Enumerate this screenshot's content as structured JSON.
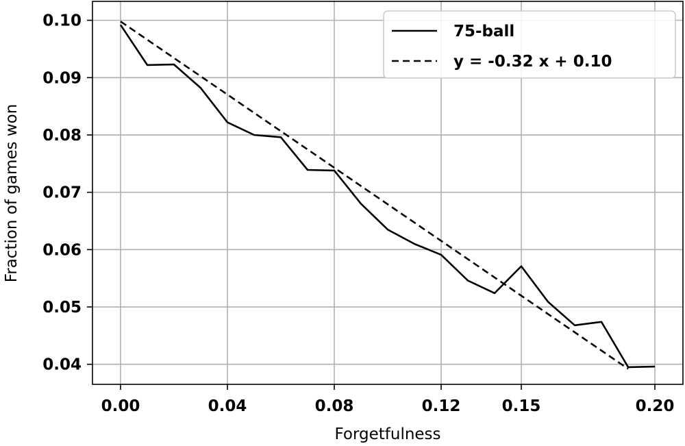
{
  "chart_data": {
    "type": "line",
    "title": "",
    "xlabel": "Forgetfulness",
    "ylabel": "Fraction of games won",
    "xlim": [
      -0.0105,
      0.2105
    ],
    "ylim": [
      0.0365,
      0.1033
    ],
    "grid": true,
    "legend_placement": "top-right",
    "x_ticks": [
      0,
      0.04,
      0.08,
      0.12,
      0.15,
      0.2
    ],
    "x_tick_labels": [
      "0.00",
      "0.04",
      "0.08",
      "0.12",
      "0.15",
      "0.20"
    ],
    "y_ticks": [
      0.04,
      0.05,
      0.06,
      0.07,
      0.08,
      0.09,
      0.1
    ],
    "y_tick_labels": [
      "0.04",
      "0.05",
      "0.06",
      "0.07",
      "0.08",
      "0.09",
      "0.10"
    ],
    "series": [
      {
        "name": "75-ball",
        "style": "solid",
        "color": "#000000",
        "x": [
          0.0,
          0.01,
          0.02,
          0.03,
          0.04,
          0.05,
          0.06,
          0.07,
          0.08,
          0.09,
          0.1,
          0.11,
          0.12,
          0.13,
          0.14,
          0.15,
          0.16,
          0.17,
          0.18,
          0.19,
          0.2
        ],
        "y": [
          0.0992,
          0.0922,
          0.0923,
          0.0882,
          0.0822,
          0.08,
          0.0796,
          0.0739,
          0.0738,
          0.068,
          0.0635,
          0.061,
          0.0591,
          0.0546,
          0.0524,
          0.0571,
          0.0509,
          0.0468,
          0.0474,
          0.0395,
          0.0396
        ]
      },
      {
        "name": "y = -0.32 x + 0.10",
        "style": "dashed",
        "color": "#000000",
        "x": [
          0.0,
          0.19
        ],
        "y": [
          0.0998,
          0.0392
        ]
      }
    ]
  }
}
